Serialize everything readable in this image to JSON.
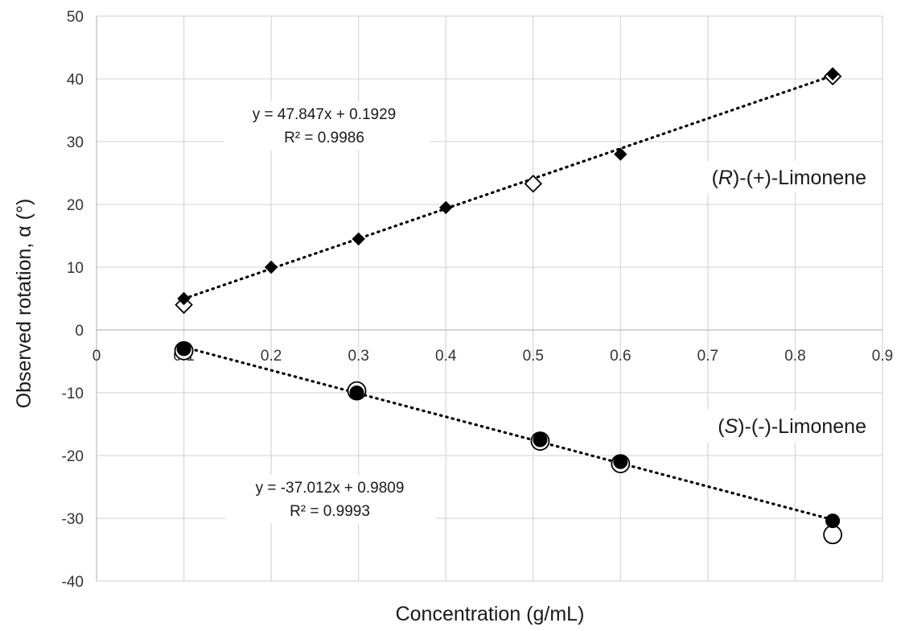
{
  "chart_data": {
    "type": "scatter",
    "xlabel": "Concentration (g/mL)",
    "ylabel": "Observed rotation, α (°)",
    "xlim": [
      0,
      0.9
    ],
    "ylim": [
      -40,
      50
    ],
    "x_ticks": [
      0,
      0.1,
      0.2,
      0.3,
      0.4,
      0.5,
      0.6,
      0.7,
      0.8,
      0.9
    ],
    "y_ticks": [
      -40,
      -30,
      -20,
      -10,
      0,
      10,
      20,
      30,
      40,
      50
    ],
    "x_tick_labels": [
      "0",
      "0.1",
      "0.2",
      "0.3",
      "0.4",
      "0.5",
      "0.6",
      "0.7",
      "0.8",
      "0.9"
    ],
    "y_tick_labels": [
      "-40",
      "-30",
      "-20",
      "-10",
      "0",
      "10",
      "20",
      "30",
      "40",
      "50"
    ],
    "grid": true,
    "series": [
      {
        "label": {
          "prefix": "(",
          "italic": "R",
          "suffix": ")-(+)-Limonene"
        },
        "color": "#000000",
        "marker": "diamond",
        "filled_points": [
          {
            "x": 0.1,
            "y": 5.0
          },
          {
            "x": 0.2,
            "y": 10.0
          },
          {
            "x": 0.3,
            "y": 14.5
          },
          {
            "x": 0.4,
            "y": 19.5
          },
          {
            "x": 0.6,
            "y": 28.0
          },
          {
            "x": 0.843,
            "y": 40.8
          }
        ],
        "open_points": [
          {
            "x": 0.1,
            "y": 4.0
          },
          {
            "x": 0.5,
            "y": 23.3
          },
          {
            "x": 0.843,
            "y": 40.4
          }
        ],
        "trendline": {
          "slope": 47.847,
          "intercept": 0.1929,
          "x_range": [
            0.1,
            0.843
          ],
          "equation": "y = 47.847x + 0.1929",
          "r2": "R² = 0.9986"
        }
      },
      {
        "label": {
          "prefix": "(",
          "italic": "S",
          "suffix": ")-(-)-Limonene"
        },
        "color": "#000000",
        "marker": "circle",
        "filled_points": [
          {
            "x": 0.1,
            "y": -3.0
          },
          {
            "x": 0.298,
            "y": -10.0
          },
          {
            "x": 0.508,
            "y": -17.5
          },
          {
            "x": 0.6,
            "y": -21.0
          },
          {
            "x": 0.843,
            "y": -30.4
          }
        ],
        "open_points": [
          {
            "x": 0.1,
            "y": -3.3
          },
          {
            "x": 0.298,
            "y": -9.7
          },
          {
            "x": 0.508,
            "y": -17.7
          },
          {
            "x": 0.6,
            "y": -21.3
          },
          {
            "x": 0.843,
            "y": -32.6
          }
        ],
        "trendline": {
          "slope": -37.012,
          "intercept": 0.9809,
          "x_range": [
            0.1,
            0.843
          ],
          "equation": "y = -37.012x + 0.9809",
          "r2": "R² = 0.9993"
        }
      }
    ]
  }
}
